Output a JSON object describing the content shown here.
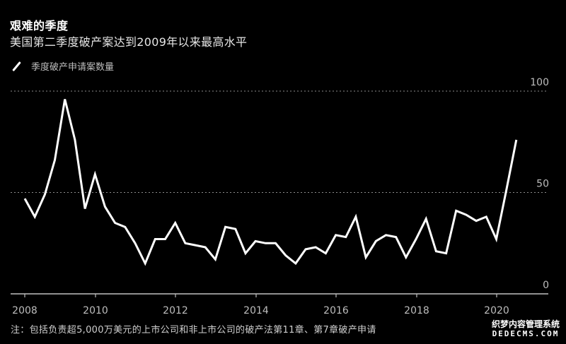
{
  "header": {
    "title": "艰难的季度",
    "subtitle": "美国第二季度破产案达到2009年以来最高水平"
  },
  "legend": {
    "label": "季度破产申请案数量"
  },
  "footer": {
    "note": "注：包括负责超5,000万美元的上市公司和非上市公司的破产法第11章、第7章破产申请"
  },
  "watermark": {
    "line1": "织梦内容管理系统",
    "line2": "DEDECMS.COM"
  },
  "colors": {
    "background": "#000000",
    "line": "#ffffff",
    "grid": "#8c8c8c",
    "axis": "#bfbfbf",
    "tick_label": "#bdbdbd"
  },
  "chart_data": {
    "type": "line",
    "title": "艰难的季度",
    "subtitle": "美国第二季度破产案达到2009年以来最高水平",
    "xlabel": "",
    "ylabel": "",
    "ylim": [
      0,
      100
    ],
    "yticks": [
      0,
      50,
      100
    ],
    "xticks": [
      "2008",
      "2010",
      "2012",
      "2014",
      "2016",
      "2018",
      "2020"
    ],
    "grid": "horizontal dotted at 50 and 100",
    "legend_position": "top-left",
    "series": [
      {
        "name": "季度破产申请案数量",
        "x": [
          "2008Q1",
          "2008Q2",
          "2008Q3",
          "2008Q4",
          "2009Q1",
          "2009Q2",
          "2009Q3",
          "2009Q4",
          "2010Q1",
          "2010Q2",
          "2010Q3",
          "2010Q4",
          "2011Q1",
          "2011Q2",
          "2011Q3",
          "2011Q4",
          "2012Q1",
          "2012Q2",
          "2012Q3",
          "2012Q4",
          "2013Q1",
          "2013Q2",
          "2013Q3",
          "2013Q4",
          "2014Q1",
          "2014Q2",
          "2014Q3",
          "2014Q4",
          "2015Q1",
          "2015Q2",
          "2015Q3",
          "2015Q4",
          "2016Q1",
          "2016Q2",
          "2016Q3",
          "2016Q4",
          "2017Q1",
          "2017Q2",
          "2017Q3",
          "2017Q4",
          "2018Q1",
          "2018Q2",
          "2018Q3",
          "2018Q4",
          "2019Q1",
          "2019Q2",
          "2019Q3",
          "2019Q4",
          "2020Q1",
          "2020Q2"
        ],
        "values": [
          47,
          38,
          49,
          66,
          96,
          76,
          42,
          59,
          43,
          35,
          33,
          25,
          15,
          27,
          27,
          35,
          25,
          24,
          23,
          17,
          33,
          32,
          20,
          26,
          25,
          25,
          19,
          15,
          22,
          23,
          20,
          29,
          28,
          38,
          18,
          26,
          29,
          28,
          18,
          27,
          37,
          21,
          20,
          41,
          39,
          36,
          38,
          27,
          51,
          76
        ]
      }
    ]
  }
}
